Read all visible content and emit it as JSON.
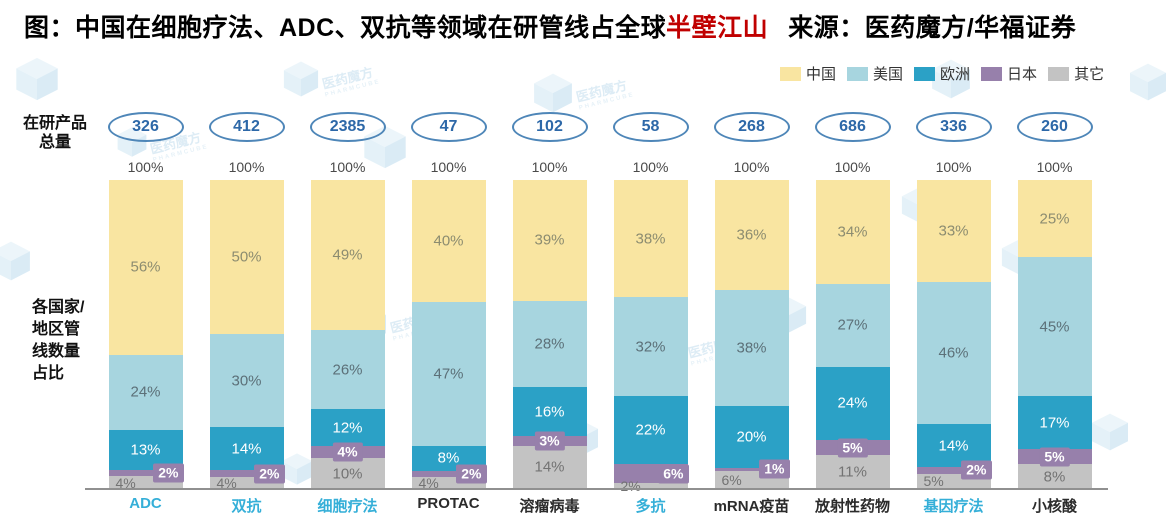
{
  "title": {
    "prefix": "图：中国在细胞疗法、ADC、双抗等领域在研管线占全球",
    "highlight": "半壁江山",
    "suffix": "来源：医药魔方/华福证券"
  },
  "left_labels": {
    "totals": "在研产品\n总量",
    "share": "各国家/\n地区管\n线数量\n占比"
  },
  "legend": [
    {
      "label": "中国",
      "color": "#F9E5A1"
    },
    {
      "label": "美国",
      "color": "#A7D5DF"
    },
    {
      "label": "欧洲",
      "color": "#2BA1C6"
    },
    {
      "label": "日本",
      "color": "#9780AB"
    },
    {
      "label": "其它",
      "color": "#C3C3C3"
    }
  ],
  "chart_data": {
    "type": "bar",
    "stacked": true,
    "unit": "%",
    "top_label": "100%",
    "categories": [
      "ADC",
      "双抗",
      "细胞疗法",
      "PROTAC",
      "溶瘤病毒",
      "多抗",
      "mRNA疫苗",
      "放射性药物",
      "基因疗法",
      "小核酸"
    ],
    "category_highlight": [
      true,
      true,
      true,
      false,
      false,
      true,
      false,
      false,
      true,
      false
    ],
    "totals": [
      326,
      412,
      2385,
      47,
      102,
      58,
      268,
      686,
      336,
      260
    ],
    "series": [
      {
        "name": "中国",
        "key": "china",
        "color": "#F9E5A1",
        "values": [
          56,
          50,
          49,
          40,
          39,
          38,
          36,
          34,
          33,
          25
        ]
      },
      {
        "name": "美国",
        "key": "usa",
        "color": "#A7D5DF",
        "values": [
          24,
          30,
          26,
          47,
          28,
          32,
          38,
          27,
          46,
          45
        ]
      },
      {
        "name": "欧洲",
        "key": "europe",
        "color": "#2BA1C6",
        "values": [
          13,
          14,
          12,
          8,
          16,
          22,
          20,
          24,
          14,
          17
        ]
      },
      {
        "name": "日本",
        "key": "japan",
        "color": "#9780AB",
        "values": [
          2,
          2,
          4,
          2,
          3,
          6,
          1,
          5,
          2,
          5
        ]
      },
      {
        "name": "其它",
        "key": "other",
        "color": "#C3C3C3",
        "values": [
          4,
          4,
          10,
          4,
          14,
          2,
          6,
          11,
          5,
          8
        ]
      }
    ],
    "japan_label_pos": [
      "right",
      "right",
      "center",
      "right",
      "center",
      "right",
      "right",
      "center",
      "right",
      "center"
    ],
    "legend_position": "top-right",
    "ylim": [
      0,
      100
    ]
  }
}
